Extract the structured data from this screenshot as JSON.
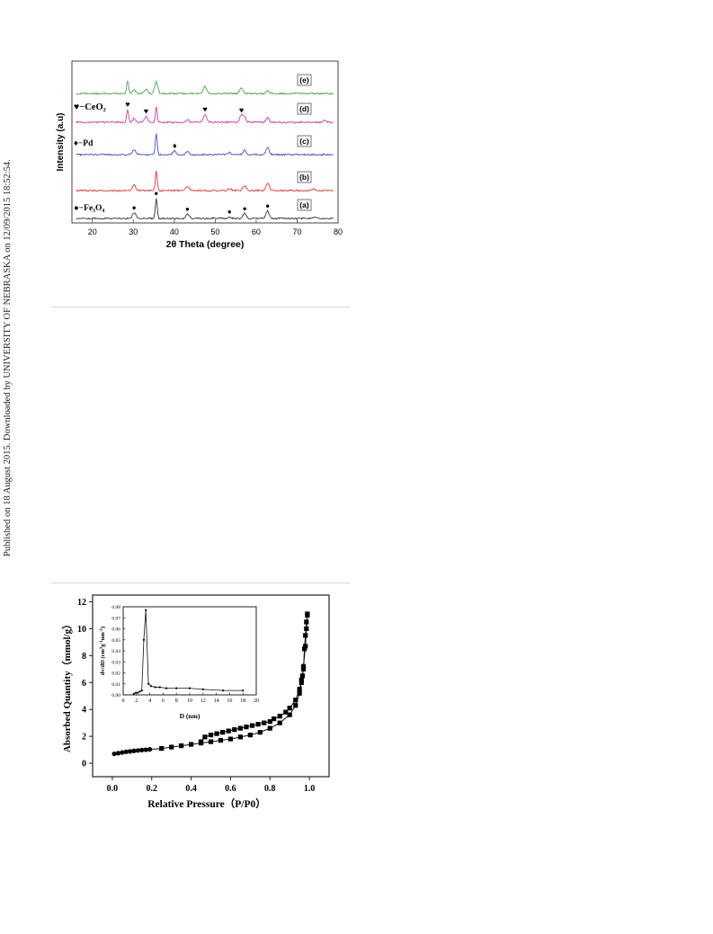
{
  "side_note": "Published on 18 August 2015. Downloaded by UNIVERSITY OF NEBRASKA on 12/09/2015 18:52:54.",
  "colors": {
    "e": "#4fa24f",
    "d": "#cc3ba8",
    "c": "#4b4fb8",
    "b": "#e0383a",
    "a": "#333333",
    "rule": "#d9dcc4"
  },
  "chart_data": [
    {
      "type": "line",
      "title": "",
      "xlabel": "2θ Theta (degree)",
      "ylabel": "Intensity (a.u)",
      "xlim": [
        15,
        80
      ],
      "x_ticks": [
        "20",
        "30",
        "40",
        "50",
        "60",
        "70",
        "80"
      ],
      "grid": false,
      "legend": [
        {
          "marker": "♥",
          "label": "−CeO₂"
        },
        {
          "marker": "♦",
          "label": "−Pd"
        },
        {
          "marker": "●",
          "label": "−Fe₃O₄"
        }
      ],
      "series": [
        {
          "name": "(e)",
          "peaks": [
            [
              28.6,
              1.0
            ],
            [
              30.2,
              0.25
            ],
            [
              33.1,
              0.35
            ],
            [
              35.6,
              0.9
            ],
            [
              47.5,
              0.55
            ],
            [
              56.4,
              0.45
            ],
            [
              62.8,
              0.2
            ]
          ]
        },
        {
          "name": "(d)",
          "peaks": [
            [
              28.6,
              1.0
            ],
            [
              30.2,
              0.3
            ],
            [
              33.1,
              0.45
            ],
            [
              35.6,
              1.25
            ],
            [
              43.2,
              0.2
            ],
            [
              47.5,
              0.6
            ],
            [
              56.4,
              0.55
            ],
            [
              57.2,
              0.35
            ],
            [
              62.8,
              0.35
            ],
            [
              76.7,
              0.15
            ]
          ]
        },
        {
          "name": "(c)",
          "peaks": [
            [
              30.2,
              0.4
            ],
            [
              35.6,
              1.7
            ],
            [
              40.1,
              0.3
            ],
            [
              43.2,
              0.25
            ],
            [
              53.5,
              0.15
            ],
            [
              57.2,
              0.35
            ],
            [
              62.8,
              0.55
            ]
          ]
        },
        {
          "name": "(b)",
          "peaks": [
            [
              30.2,
              0.45
            ],
            [
              35.6,
              1.6
            ],
            [
              43.2,
              0.35
            ],
            [
              53.5,
              0.15
            ],
            [
              57.2,
              0.4
            ],
            [
              62.8,
              0.6
            ],
            [
              74.1,
              0.12
            ]
          ]
        },
        {
          "name": "(a)",
          "peaks": [
            [
              30.2,
              0.45
            ],
            [
              35.6,
              1.6
            ],
            [
              43.2,
              0.35
            ],
            [
              53.5,
              0.15
            ],
            [
              57.2,
              0.4
            ],
            [
              62.8,
              0.6
            ],
            [
              74.1,
              0.12
            ]
          ]
        }
      ],
      "annotations": [
        {
          "marker": "♥",
          "series": "(d)",
          "x": [
            28.6,
            33.1,
            47.5,
            56.4
          ]
        },
        {
          "marker": "♦",
          "series": "(c)",
          "x": [
            40.1
          ]
        },
        {
          "marker": "●",
          "series": "(a)",
          "x": [
            30.2,
            35.6,
            43.2,
            53.5,
            57.2,
            62.8
          ]
        }
      ]
    },
    {
      "type": "scatter",
      "title": "",
      "xlabel": "Relative Pressure（P/P0）",
      "ylabel": "Absorbed Quantity（mmol/g）",
      "xlim": [
        -0.1,
        1.1
      ],
      "ylim": [
        -1,
        12.5
      ],
      "x_ticks": [
        "0.0",
        "0.2",
        "0.4",
        "0.6",
        "0.8",
        "1.0"
      ],
      "y_ticks": [
        "0",
        "2",
        "4",
        "6",
        "8",
        "10",
        "12"
      ],
      "series": [
        {
          "name": "adsorption",
          "x": [
            0.01,
            0.03,
            0.05,
            0.07,
            0.09,
            0.11,
            0.13,
            0.15,
            0.17,
            0.19,
            0.25,
            0.3,
            0.35,
            0.4,
            0.45,
            0.5,
            0.55,
            0.6,
            0.65,
            0.7,
            0.75,
            0.8,
            0.85,
            0.9,
            0.93,
            0.95,
            0.96,
            0.97,
            0.98,
            0.985,
            0.99
          ],
          "y": [
            0.7,
            0.75,
            0.8,
            0.85,
            0.88,
            0.92,
            0.95,
            0.98,
            1.0,
            1.03,
            1.1,
            1.2,
            1.3,
            1.4,
            1.5,
            1.6,
            1.7,
            1.8,
            1.95,
            2.1,
            2.3,
            2.6,
            3.0,
            3.6,
            4.3,
            5.2,
            6.0,
            7.2,
            8.7,
            10.0,
            11.1
          ]
        },
        {
          "name": "desorption",
          "x": [
            0.99,
            0.985,
            0.98,
            0.975,
            0.97,
            0.965,
            0.96,
            0.95,
            0.93,
            0.9,
            0.88,
            0.85,
            0.82,
            0.8,
            0.77,
            0.74,
            0.71,
            0.68,
            0.65,
            0.62,
            0.59,
            0.56,
            0.53,
            0.5,
            0.47,
            0.45
          ],
          "y": [
            11.0,
            10.5,
            9.5,
            8.5,
            7.0,
            6.5,
            6.2,
            5.5,
            4.7,
            4.1,
            3.8,
            3.5,
            3.3,
            3.1,
            3.0,
            2.9,
            2.8,
            2.7,
            2.6,
            2.5,
            2.4,
            2.3,
            2.2,
            2.1,
            1.95,
            1.6
          ]
        }
      ],
      "inset": {
        "type": "line",
        "xlabel": "D (nm)",
        "ylabel": "dv/dD (cm3g-1nm-1)",
        "xlim": [
          0,
          20
        ],
        "ylim": [
          0,
          0.08
        ],
        "x_ticks": [
          "0",
          "2",
          "4",
          "6",
          "8",
          "10",
          "12",
          "14",
          "16",
          "18",
          "20"
        ],
        "y_ticks": [
          "0.00",
          "0.01",
          "0.02",
          "0.03",
          "0.04",
          "0.05",
          "0.06",
          "0.07",
          "0.08"
        ],
        "x": [
          1.6,
          1.9,
          2.2,
          2.5,
          2.8,
          3.1,
          3.4,
          3.8,
          4.2,
          4.8,
          5.5,
          6.5,
          8.0,
          10.0,
          12.0,
          15.0,
          18.0
        ],
        "y": [
          0.001,
          0.002,
          0.002,
          0.003,
          0.004,
          0.05,
          0.077,
          0.01,
          0.008,
          0.007,
          0.007,
          0.006,
          0.006,
          0.006,
          0.005,
          0.004,
          0.004
        ]
      }
    }
  ]
}
